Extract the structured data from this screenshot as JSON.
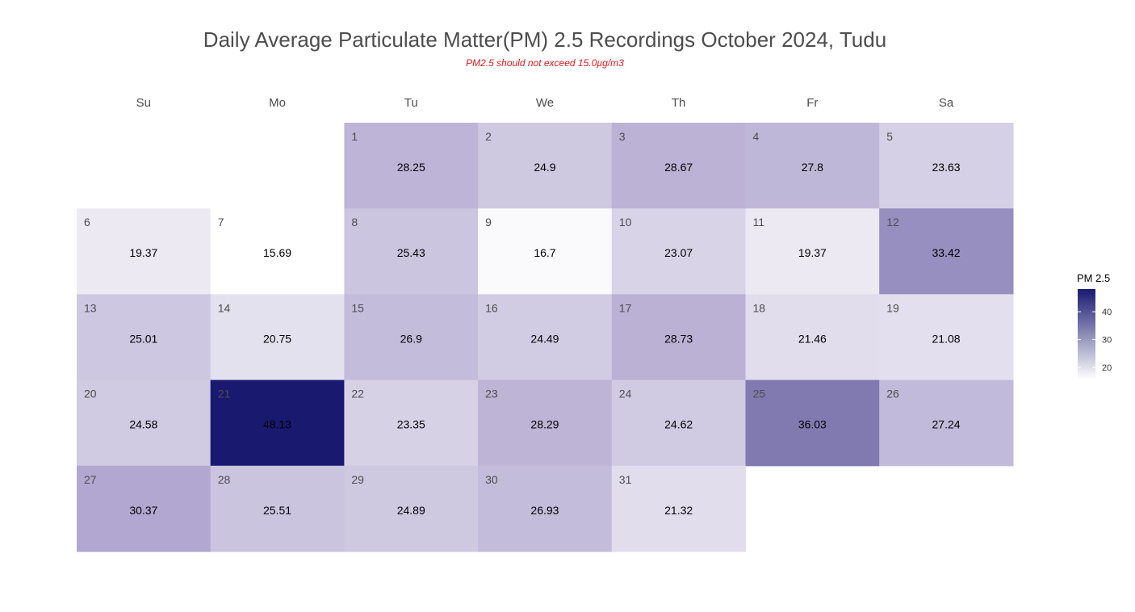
{
  "chart_data": {
    "type": "heatmap",
    "title": "Daily Average Particulate Matter(PM) 2.5 Recordings October 2024,  Tudu",
    "subtitle": "PM2.5 should not exceed 15.0µg/m3",
    "weekdays": [
      "Su",
      "Mo",
      "Tu",
      "We",
      "Th",
      "Fr",
      "Sa"
    ],
    "first_weekday_index": 2,
    "days": [
      {
        "day": "1",
        "value": 28.25
      },
      {
        "day": "2",
        "value": 24.9
      },
      {
        "day": "3",
        "value": 28.67
      },
      {
        "day": "4",
        "value": 27.8
      },
      {
        "day": "5",
        "value": 23.63
      },
      {
        "day": "6",
        "value": 19.37
      },
      {
        "day": "7",
        "value": 15.69
      },
      {
        "day": "8",
        "value": 25.43
      },
      {
        "day": "9",
        "value": 16.7
      },
      {
        "day": "10",
        "value": 23.07
      },
      {
        "day": "11",
        "value": 19.37
      },
      {
        "day": "12",
        "value": 33.42
      },
      {
        "day": "13",
        "value": 25.01
      },
      {
        "day": "14",
        "value": 20.75
      },
      {
        "day": "15",
        "value": 26.9
      },
      {
        "day": "16",
        "value": 24.49
      },
      {
        "day": "17",
        "value": 28.73
      },
      {
        "day": "18",
        "value": 21.46
      },
      {
        "day": "19",
        "value": 21.08
      },
      {
        "day": "20",
        "value": 24.58
      },
      {
        "day": "21",
        "value": 48.13
      },
      {
        "day": "22",
        "value": 23.35
      },
      {
        "day": "23",
        "value": 28.29
      },
      {
        "day": "24",
        "value": 24.62
      },
      {
        "day": "25",
        "value": 36.03
      },
      {
        "day": "26",
        "value": 27.24
      },
      {
        "day": "27",
        "value": 30.37
      },
      {
        "day": "28",
        "value": 25.51
      },
      {
        "day": "29",
        "value": 24.89
      },
      {
        "day": "30",
        "value": 26.93
      },
      {
        "day": "31",
        "value": 21.32
      }
    ],
    "legend": {
      "title": "PM 2.5",
      "ticks": [
        20,
        30,
        40
      ],
      "range": [
        15.69,
        48.13
      ],
      "low_color": "#ffffff",
      "high_color": "#191970"
    }
  }
}
